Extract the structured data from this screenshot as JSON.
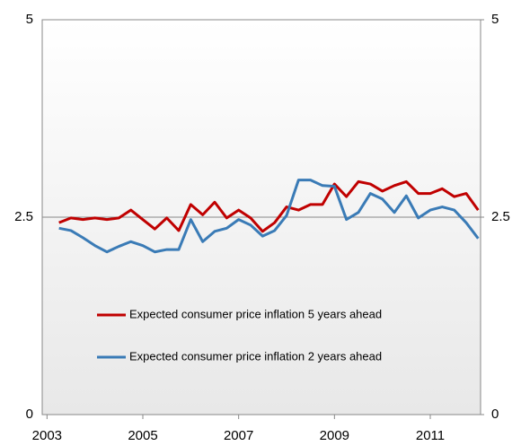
{
  "chart_data": {
    "type": "line",
    "x": [
      2003.25,
      2003.5,
      2003.75,
      2004,
      2004.25,
      2004.5,
      2004.75,
      2005,
      2005.25,
      2005.5,
      2005.75,
      2006,
      2006.25,
      2006.5,
      2006.75,
      2007,
      2007.25,
      2007.5,
      2007.75,
      2008,
      2008.25,
      2008.5,
      2008.75,
      2009,
      2009.25,
      2009.5,
      2009.75,
      2010,
      2010.25,
      2010.5,
      2010.75,
      2011,
      2011.25,
      2011.5,
      2011.75,
      2012
    ],
    "series": [
      {
        "name": "Expected consumer price inflation 5 years ahead",
        "color": "#c00000",
        "values": [
          2.43,
          2.49,
          2.47,
          2.49,
          2.47,
          2.49,
          2.59,
          2.47,
          2.35,
          2.49,
          2.33,
          2.66,
          2.53,
          2.69,
          2.49,
          2.59,
          2.49,
          2.32,
          2.43,
          2.63,
          2.59,
          2.66,
          2.66,
          2.92,
          2.76,
          2.95,
          2.92,
          2.83,
          2.9,
          2.95,
          2.8,
          2.8,
          2.86,
          2.76,
          2.8,
          2.59
        ]
      },
      {
        "name": "Expected consumer price inflation 2 years ahead",
        "color": "#3a7bb6",
        "values": [
          2.36,
          2.33,
          2.24,
          2.14,
          2.06,
          2.13,
          2.19,
          2.14,
          2.06,
          2.09,
          2.09,
          2.47,
          2.19,
          2.32,
          2.36,
          2.47,
          2.4,
          2.26,
          2.33,
          2.52,
          2.97,
          2.97,
          2.9,
          2.89,
          2.47,
          2.56,
          2.8,
          2.73,
          2.56,
          2.77,
          2.49,
          2.59,
          2.63,
          2.59,
          2.43,
          2.23
        ]
      }
    ],
    "xlim": [
      2002.9,
      2012.05
    ],
    "xticks": [
      2003,
      2005,
      2007,
      2009,
      2011
    ],
    "ylim": [
      0,
      5
    ],
    "yticks": [
      0,
      2.5,
      5
    ],
    "y2lim": [
      0,
      5
    ],
    "y2ticks": [
      0,
      2.5,
      5
    ],
    "grid": true
  }
}
